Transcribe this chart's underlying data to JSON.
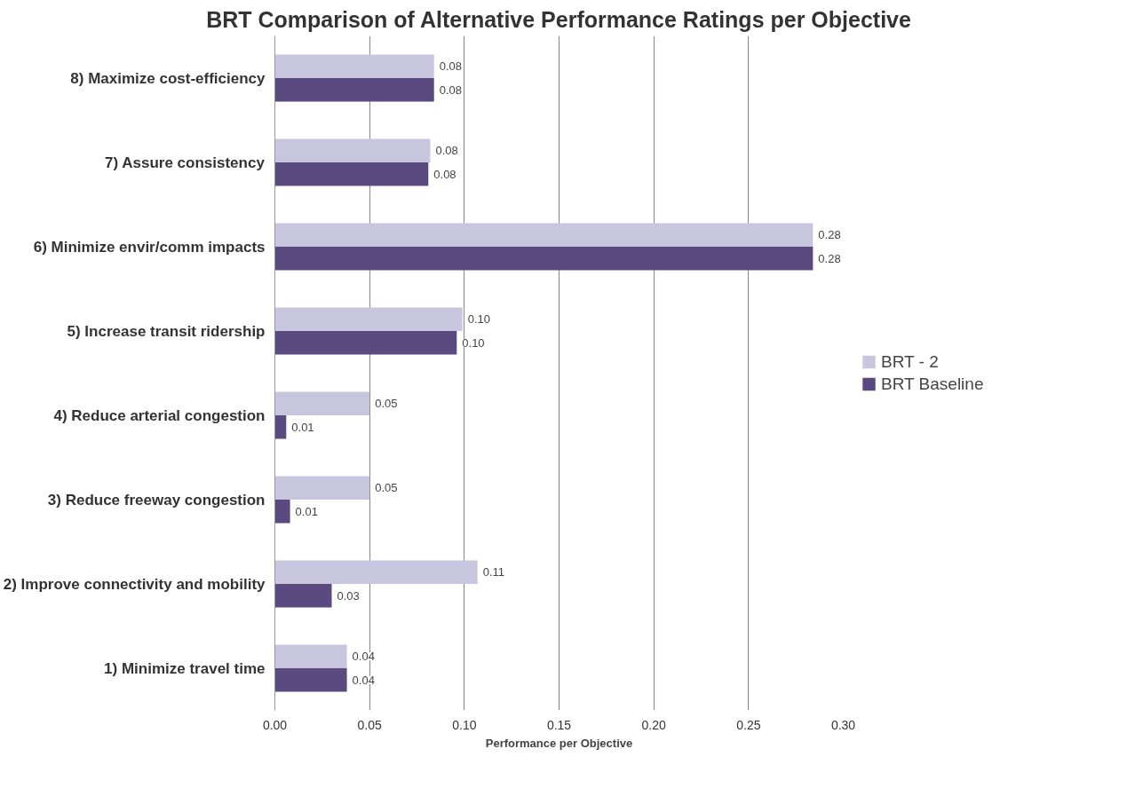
{
  "chart_data": {
    "type": "bar",
    "orientation": "horizontal",
    "title": "BRT Comparison of Alternative Performance Ratings per Objective",
    "xlabel": "Performance per Objective",
    "categories": [
      "8) Maximize cost-efficiency",
      "7) Assure consistency",
      "6) Minimize envir/comm impacts",
      "5) Increase transit ridership",
      "4) Reduce arterial congestion",
      "3) Reduce freeway congestion",
      "2) Improve connectivity and mobility",
      "1) Minimize travel time"
    ],
    "series": [
      {
        "name": "BRT - 2",
        "color": "#c8c6de",
        "values": [
          0.084,
          0.082,
          0.284,
          0.099,
          0.05,
          0.05,
          0.107,
          0.038
        ],
        "value_labels": [
          "0.08",
          "0.08",
          "0.28",
          "0.10",
          "0.05",
          "0.05",
          "0.11",
          "0.04"
        ]
      },
      {
        "name": "BRT Baseline",
        "color": "#5a4a80",
        "values": [
          0.084,
          0.081,
          0.284,
          0.096,
          0.006,
          0.008,
          0.03,
          0.038
        ],
        "value_labels": [
          "0.08",
          "0.08",
          "0.28",
          "0.10",
          "0.01",
          "0.01",
          "0.03",
          "0.04"
        ]
      }
    ],
    "xlim": [
      0,
      0.3
    ],
    "xticks": [
      {
        "value": 0,
        "label": "0.00"
      },
      {
        "value": 0.05,
        "label": "0.05"
      },
      {
        "value": 0.1,
        "label": "0.10"
      },
      {
        "value": 0.15,
        "label": "0.15"
      },
      {
        "value": 0.2,
        "label": "0.20"
      },
      {
        "value": 0.25,
        "label": "0.25"
      },
      {
        "value": 0.3,
        "label": "0.30"
      }
    ],
    "grid": "x",
    "legend": "right"
  }
}
